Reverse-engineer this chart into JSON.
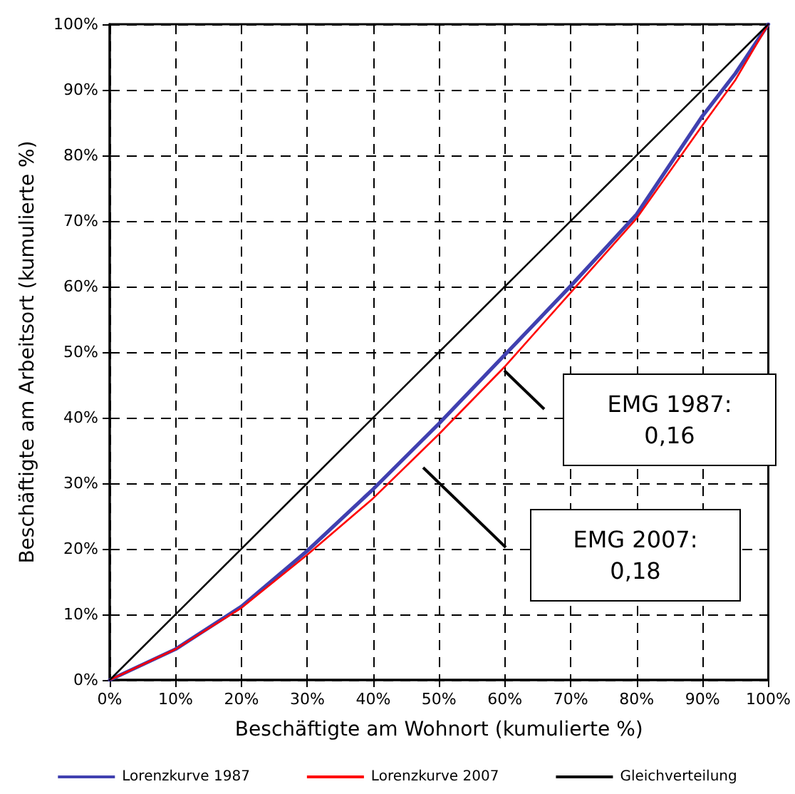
{
  "chart_data": {
    "type": "line",
    "xlabel": "Beschäftigte am Wohnort (kumulierte %)",
    "ylabel": "Beschäftigte am Arbeitsort (kumulierte %)",
    "x": [
      0,
      10,
      20,
      30,
      40,
      50,
      60,
      70,
      80,
      90,
      95,
      100
    ],
    "series": [
      {
        "name": "Lorenzkurve 1987",
        "color": "#4040b0",
        "values": [
          0,
          4.7,
          11.2,
          19.7,
          29.1,
          39.1,
          49.6,
          60.1,
          71,
          86,
          92.5,
          100
        ]
      },
      {
        "name": "Lorenzkurve 2007",
        "color": "#ff0000",
        "values": [
          0,
          4.7,
          11,
          19.1,
          27.7,
          37.5,
          47.8,
          59.1,
          70.4,
          84.6,
          91.5,
          100
        ]
      },
      {
        "name": "Gleichverteilung",
        "color": "#000000",
        "x": [
          0,
          100
        ],
        "values": [
          0,
          100
        ]
      }
    ],
    "annotations": [
      "EMG 1987:\n0,16",
      "EMG 2007:\n0,18"
    ],
    "xlim": [
      0,
      100
    ],
    "ylim": [
      0,
      100
    ],
    "xticks": [
      {
        "value": 0,
        "label": "0%"
      },
      {
        "value": 10,
        "label": "10%"
      },
      {
        "value": 20,
        "label": "20%"
      },
      {
        "value": 30,
        "label": "30%"
      },
      {
        "value": 40,
        "label": "40%"
      },
      {
        "value": 50,
        "label": "50%"
      },
      {
        "value": 60,
        "label": "60%"
      },
      {
        "value": 70,
        "label": "70%"
      },
      {
        "value": 80,
        "label": "80%"
      },
      {
        "value": 90,
        "label": "90%"
      },
      {
        "value": 100,
        "label": "100%"
      }
    ],
    "yticks": [
      {
        "value": 0,
        "label": "0%"
      },
      {
        "value": 10,
        "label": "10%"
      },
      {
        "value": 20,
        "label": "20%"
      },
      {
        "value": 30,
        "label": "30%"
      },
      {
        "value": 40,
        "label": "40%"
      },
      {
        "value": 50,
        "label": "50%"
      },
      {
        "value": 60,
        "label": "60%"
      },
      {
        "value": 70,
        "label": "70%"
      },
      {
        "value": 80,
        "label": "80%"
      },
      {
        "value": 90,
        "label": "90%"
      },
      {
        "value": 100,
        "label": "100%"
      }
    ],
    "grid": true,
    "legend": "bottom",
    "marker": "none",
    "line_style": "solid"
  }
}
